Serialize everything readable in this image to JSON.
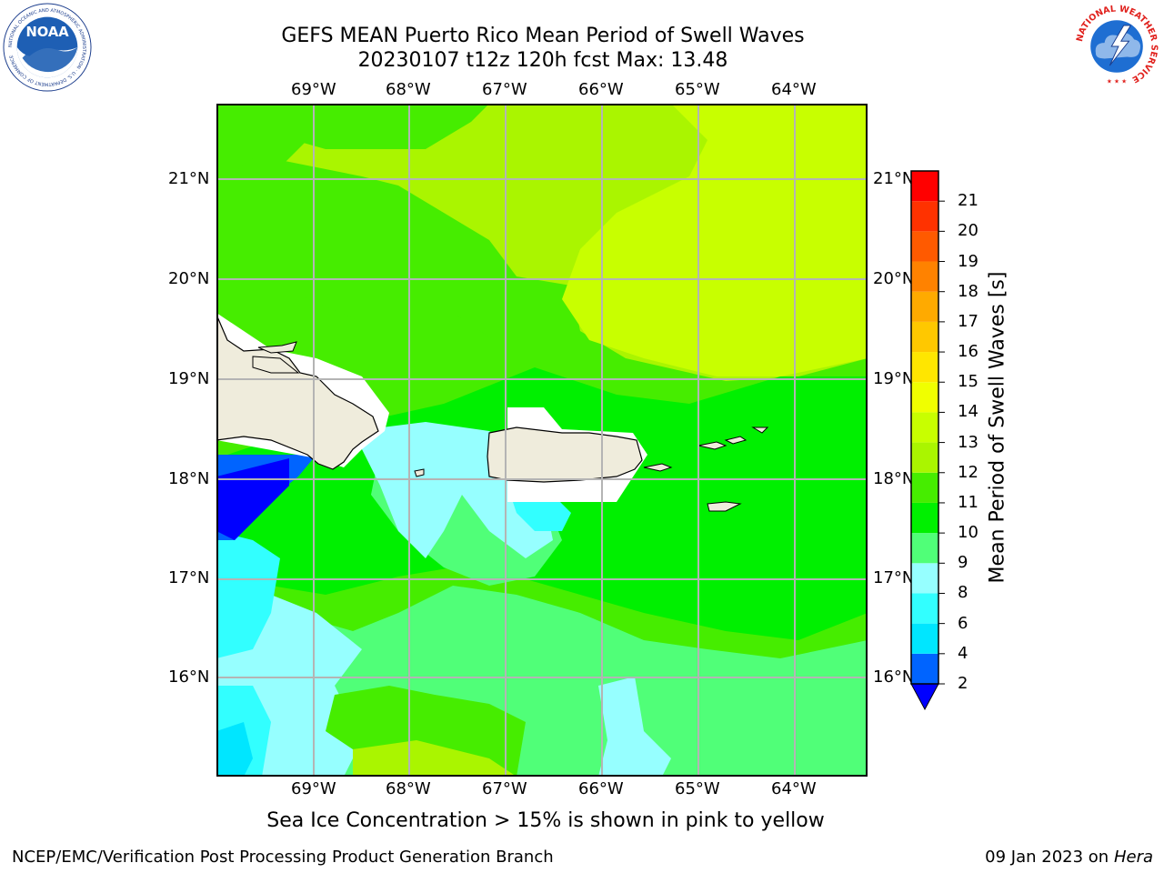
{
  "title": {
    "line1": "GEFS MEAN Puerto Rico Mean Period of Swell Waves",
    "line2": "20230107 t12z 120h fcst   Max: 13.48"
  },
  "map": {
    "lon_labels": [
      "69°W",
      "68°W",
      "67°W",
      "66°W",
      "65°W",
      "64°W"
    ],
    "lat_labels": [
      "21°N",
      "20°N",
      "19°N",
      "18°N",
      "17°N",
      "16°N"
    ],
    "land_color": "#efecdc",
    "grid_color": "#b4b4b4"
  },
  "colorbar": {
    "title": "Mean Period of Swell Waves [s]",
    "ticks": [
      "2",
      "4",
      "6",
      "8",
      "9",
      "10",
      "11",
      "12",
      "13",
      "14",
      "15",
      "16",
      "17",
      "18",
      "19",
      "20",
      "21"
    ],
    "colors": [
      "#0064ff",
      "#00e6ff",
      "#32ffff",
      "#96ffff",
      "#50ff78",
      "#00f000",
      "#46ed00",
      "#aaf500",
      "#c8ff00",
      "#f0ff00",
      "#ffe600",
      "#ffc800",
      "#ffaa00",
      "#ff8200",
      "#ff5a00",
      "#ff3200",
      "#ff0000"
    ],
    "extend_color": "#0000ff"
  },
  "logos": {
    "noaa_text": "NOAA",
    "noaa_ring_text": "NATIONAL OCEANIC AND ATMOSPHERIC ADMINISTRATION · U.S. DEPARTMENT OF COMMERCE",
    "nws_ring_text": "NATIONAL WEATHER SERVICE"
  },
  "note": "Sea Ice Concentration > 15% is shown in pink to yellow",
  "footer": {
    "left": "NCEP/EMC/Verification Post Processing Product Generation Branch",
    "right_date": "09 Jan 2023 on ",
    "right_host": "Hera"
  }
}
